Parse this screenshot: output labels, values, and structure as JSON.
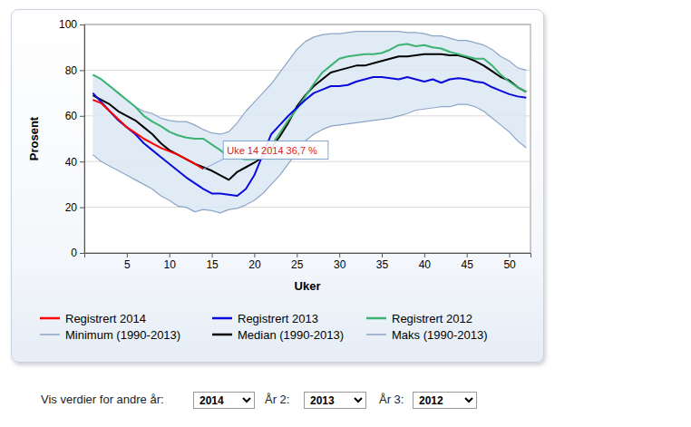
{
  "chart_data": {
    "type": "line",
    "xlabel": "Uker",
    "ylabel": "Prosent",
    "x": [
      1,
      2,
      3,
      4,
      5,
      6,
      7,
      8,
      9,
      10,
      11,
      12,
      13,
      14,
      15,
      16,
      17,
      18,
      19,
      20,
      21,
      22,
      23,
      24,
      25,
      26,
      27,
      28,
      29,
      30,
      31,
      32,
      33,
      34,
      35,
      36,
      37,
      38,
      39,
      40,
      41,
      42,
      43,
      44,
      45,
      46,
      47,
      48,
      49,
      50,
      51,
      52
    ],
    "xlim": [
      0,
      52.5
    ],
    "xticks": [
      5,
      10,
      15,
      20,
      25,
      30,
      35,
      40,
      45,
      50
    ],
    "ylim": [
      0,
      100
    ],
    "yticks": [
      0,
      20,
      40,
      60,
      80,
      100
    ],
    "grid": true,
    "legend": "bottom",
    "series": [
      {
        "name": "Registrert 2014",
        "color": "#ff0000",
        "values": [
          67,
          65.5,
          62,
          58.5,
          55,
          52.5,
          50,
          48,
          46,
          44.5,
          43,
          41,
          39,
          36.7,
          null,
          null,
          null,
          null,
          null,
          null,
          null,
          null,
          null,
          null,
          null,
          null,
          null,
          null,
          null,
          null,
          null,
          null,
          null,
          null,
          null,
          null,
          null,
          null,
          null,
          null,
          null,
          null,
          null,
          null,
          null,
          null,
          null,
          null,
          null,
          null,
          null,
          null
        ]
      },
      {
        "name": "Registrert 2013",
        "color": "#0a0adc",
        "values": [
          70,
          66,
          62,
          58,
          55,
          52,
          48,
          45,
          42,
          39,
          36,
          33,
          30.5,
          28,
          26,
          26,
          25.5,
          25,
          28,
          34,
          43,
          52,
          56,
          60,
          63.5,
          67,
          70,
          71.5,
          73,
          73,
          73.5,
          75,
          76,
          77,
          77,
          76.5,
          76,
          77,
          76,
          75,
          76,
          74.5,
          76,
          76.5,
          76,
          75,
          74.5,
          72.5,
          71,
          69.5,
          68.5,
          68
        ]
      },
      {
        "name": "Registrert 2012",
        "color": "#3cb371",
        "values": [
          78,
          76,
          73,
          70,
          67,
          64,
          60,
          57.5,
          55.5,
          53,
          51.5,
          50.5,
          50,
          50,
          47.5,
          45,
          42,
          41.5,
          41,
          41,
          42,
          47,
          52.5,
          58,
          63,
          68.5,
          74,
          79,
          82,
          85,
          86,
          86.5,
          87,
          87,
          87.5,
          89,
          91,
          91.5,
          90.5,
          91,
          90,
          89.5,
          88,
          87,
          86,
          85,
          85,
          82,
          78,
          75,
          72.5,
          70.5
        ]
      },
      {
        "name": "Minimum (1990-2013)",
        "color": "#8ea6c6",
        "values": [
          43,
          40,
          38,
          36,
          34,
          32,
          30,
          28,
          25,
          23,
          20.5,
          20,
          18,
          19,
          18.5,
          17.5,
          19,
          19.5,
          21,
          23,
          26,
          30,
          34,
          39,
          44,
          49,
          52,
          54,
          55.5,
          56,
          56.5,
          57,
          57.5,
          58,
          58.5,
          59,
          60,
          61,
          62.5,
          63,
          63.5,
          64,
          64,
          65,
          65,
          64,
          62,
          59,
          56,
          53,
          49,
          46
        ]
      },
      {
        "name": "Median (1990-2013)",
        "color": "#000000",
        "values": [
          69,
          67,
          65,
          62,
          60,
          58,
          55,
          52,
          48,
          45,
          43,
          41,
          39,
          37.5,
          36,
          34,
          32,
          35.5,
          37.5,
          39.5,
          42,
          46,
          51,
          57,
          64,
          69,
          73,
          76,
          79,
          80,
          81,
          82,
          82,
          83,
          84,
          85,
          86,
          86,
          86.5,
          87,
          87,
          87,
          86.5,
          86.5,
          85.5,
          84,
          82,
          79.5,
          77,
          75.5,
          72.5,
          70.5
        ]
      },
      {
        "name": "Maks (1990-2013)",
        "color": "#8ea6c6",
        "values": [
          78,
          76,
          73,
          70,
          67,
          64,
          62,
          61,
          59,
          58,
          57.5,
          57.5,
          56,
          54,
          52.5,
          52,
          53,
          57,
          62,
          66,
          70,
          74,
          79,
          84,
          89,
          92.5,
          94.5,
          95.5,
          96,
          96,
          96.5,
          97,
          97,
          97,
          97,
          97,
          97,
          96.5,
          96.5,
          96,
          95,
          95,
          94,
          93,
          93,
          92,
          91,
          89,
          86,
          84,
          81,
          80
        ]
      }
    ],
    "annotations": [
      {
        "text": "Uke 14 2014 36,7 %",
        "x": 14,
        "y": 36.7
      }
    ]
  },
  "controls": [
    {
      "label": "Vis verdier for andre år:",
      "value": "2014"
    },
    {
      "label": "År 2:",
      "value": "2013"
    },
    {
      "label": "År 3:",
      "value": "2012"
    }
  ]
}
